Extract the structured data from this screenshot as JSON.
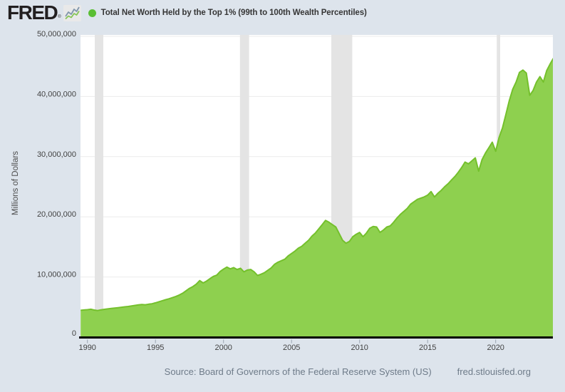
{
  "header": {
    "logo_text": "FRED",
    "logo_registered": "®"
  },
  "chart_data": {
    "type": "area",
    "title": "Total Net Worth Held by the Top 1% (99th to 100th Wealth Percentiles)",
    "ylabel": "Millions of Dollars",
    "values_unit": "millions of dollars",
    "frequency": "quarterly",
    "x_start": 1989.5,
    "x_step": 0.25,
    "xlim": [
      1989.4,
      2024.45
    ],
    "ylim": [
      0,
      50000000
    ],
    "grid": "horizontal-only",
    "legend_position": "top",
    "y_ticks": [
      {
        "value": 0,
        "label": "0"
      },
      {
        "value": 10000000,
        "label": "10,000,000"
      },
      {
        "value": 20000000,
        "label": "20,000,000"
      },
      {
        "value": 30000000,
        "label": "30,000,000"
      },
      {
        "value": 40000000,
        "label": "40,000,000"
      },
      {
        "value": 50000000,
        "label": "50,000,000"
      }
    ],
    "x_ticks": [
      {
        "value": 1990,
        "label": "1990"
      },
      {
        "value": 1995,
        "label": "1995"
      },
      {
        "value": 2000,
        "label": "2000"
      },
      {
        "value": 2005,
        "label": "2005"
      },
      {
        "value": 2010,
        "label": "2010"
      },
      {
        "value": 2015,
        "label": "2015"
      },
      {
        "value": 2020,
        "label": "2020"
      }
    ],
    "recessions": [
      [
        1990.54,
        1991.17
      ],
      [
        2001.21,
        2001.88
      ],
      [
        2007.92,
        2009.46
      ],
      [
        2020.08,
        2020.33
      ]
    ],
    "values": [
      4450000,
      4510000,
      4560000,
      4630000,
      4500000,
      4420000,
      4540000,
      4620000,
      4690000,
      4760000,
      4820000,
      4890000,
      4960000,
      5040000,
      5100000,
      5180000,
      5270000,
      5360000,
      5420000,
      5380000,
      5470000,
      5550000,
      5700000,
      5880000,
      6050000,
      6220000,
      6380000,
      6560000,
      6760000,
      7000000,
      7300000,
      7700000,
      8100000,
      8400000,
      8800000,
      9400000,
      9000000,
      9300000,
      9700000,
      10100000,
      10300000,
      10900000,
      11300000,
      11650000,
      11350000,
      11550000,
      11250000,
      11450000,
      10850000,
      11150000,
      11250000,
      10850000,
      10250000,
      10450000,
      10700000,
      11100000,
      11500000,
      12100000,
      12450000,
      12700000,
      12950000,
      13500000,
      13900000,
      14300000,
      14800000,
      15100000,
      15600000,
      16100000,
      16800000,
      17300000,
      18000000,
      18700000,
      19400000,
      19100000,
      18700000,
      18300000,
      17200000,
      16100000,
      15600000,
      15900000,
      16700000,
      17100000,
      17400000,
      16700000,
      17300000,
      18100000,
      18400000,
      18300000,
      17400000,
      17800000,
      18300000,
      18500000,
      19100000,
      19800000,
      20400000,
      20900000,
      21400000,
      22100000,
      22500000,
      22900000,
      23100000,
      23300000,
      23600000,
      24200000,
      23300000,
      23900000,
      24400000,
      25000000,
      25500000,
      26100000,
      26700000,
      27400000,
      28200000,
      29100000,
      28800000,
      29300000,
      29800000,
      27600000,
      29500000,
      30600000,
      31500000,
      32400000,
      30900000,
      33200000,
      34800000,
      37000000,
      39300000,
      41200000,
      42400000,
      44000000,
      44400000,
      43900000,
      40200000,
      41000000,
      42400000,
      43300000,
      42400000,
      44300000,
      45400000,
      46400000
    ],
    "colors": {
      "page_bg": "#dde4ec",
      "plot_bg": "#ffffff",
      "gridline": "#ebebeb",
      "recession_band": "#e4e4e4",
      "area_fill": "#8ed04f",
      "area_line": "#74c02c",
      "legend_marker": "#5abe33",
      "axis_line": "#000000",
      "tick_mark": "#9aa4b0",
      "tick_text": "#424242"
    }
  },
  "footer": {
    "source": "Source: Board of Governors of the Federal Reserve System (US)",
    "site": "fred.stlouisfed.org"
  }
}
